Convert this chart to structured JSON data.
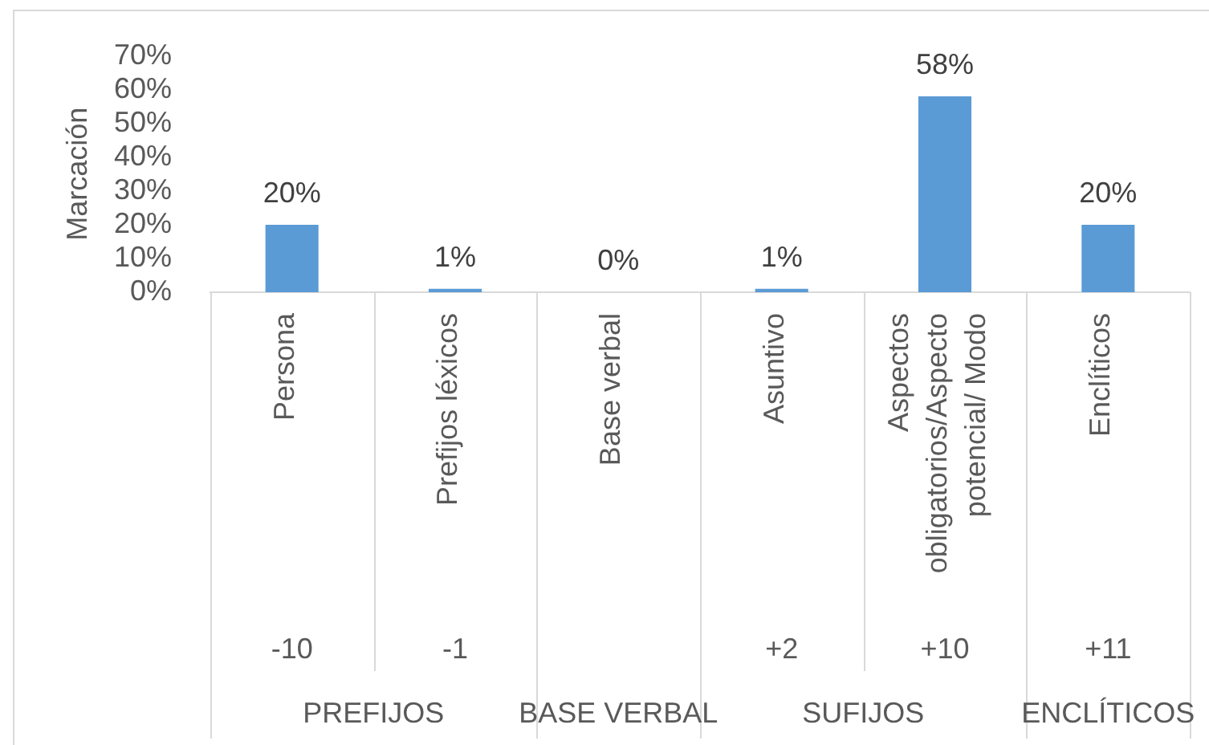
{
  "chart_data": {
    "type": "bar",
    "ylabel": "Marcación",
    "categories": [
      "Persona",
      "Prefijos léxicos",
      "Base verbal",
      "Asuntivo",
      "Aspectos obligatorios/Aspecto potencial/ Modo",
      "Enclíticos"
    ],
    "values": [
      20,
      1,
      0,
      1,
      58,
      20
    ],
    "value_labels": [
      "20%",
      "1%",
      "0%",
      "1%",
      "58%",
      "20%"
    ],
    "color": "#5b9bd5",
    "ylim": [
      0,
      70
    ],
    "yticks": [
      {
        "value": 0,
        "label": "0%"
      },
      {
        "value": 10,
        "label": "10%"
      },
      {
        "value": 20,
        "label": "20%"
      },
      {
        "value": 30,
        "label": "30%"
      },
      {
        "value": 40,
        "label": "40%"
      },
      {
        "value": 50,
        "label": "50%"
      },
      {
        "value": 60,
        "label": "60%"
      },
      {
        "value": 70,
        "label": "70%"
      }
    ],
    "annotations": [
      "-10",
      "-1",
      "+2",
      "+10",
      "+11",
      "PREFIJOS",
      "BASE VERBAL",
      "SUFIJOS",
      "ENCLÍTICOS"
    ]
  }
}
